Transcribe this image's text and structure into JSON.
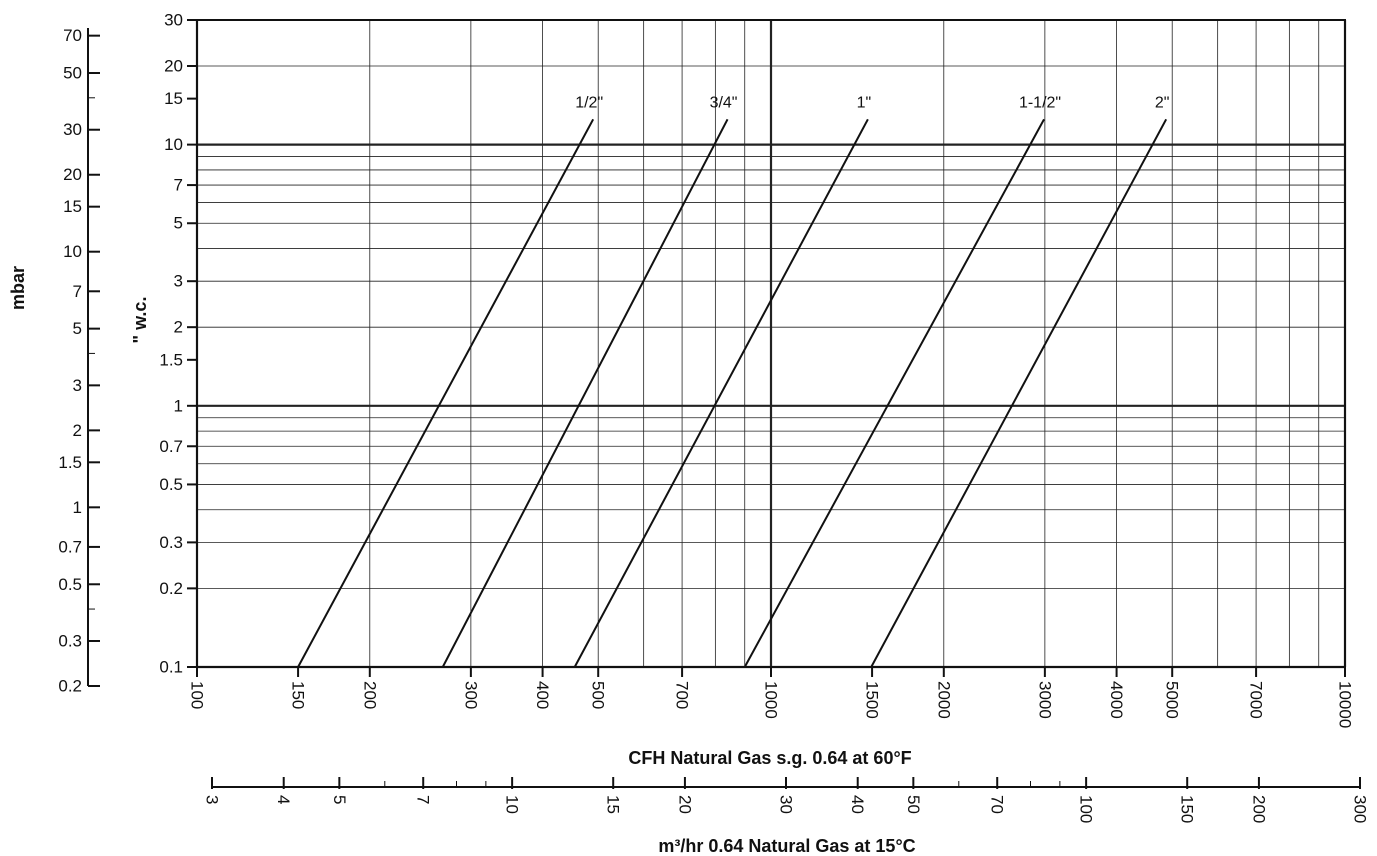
{
  "chart_data": {
    "type": "line",
    "x_scale": "log",
    "y_scale": "log",
    "grid": true,
    "xlabel": "CFH Natural Gas s.g. 0.64 at 60°F",
    "ylabel": "\" w.c.",
    "xlim": [
      100,
      10000
    ],
    "ylim": [
      0.1,
      30
    ],
    "x_ticks": [
      100,
      150,
      200,
      300,
      400,
      500,
      700,
      1000,
      1500,
      2000,
      3000,
      4000,
      5000,
      7000,
      10000
    ],
    "x_tick_labels": [
      "100",
      "150",
      "200",
      "300",
      "400",
      "500",
      "700",
      "1000",
      "1500",
      "2000",
      "3000",
      "4000",
      "5000",
      "7000",
      "10000"
    ],
    "x_grid": [
      100,
      200,
      300,
      400,
      500,
      600,
      700,
      800,
      900,
      1000,
      2000,
      3000,
      4000,
      5000,
      6000,
      7000,
      8000,
      9000,
      10000
    ],
    "y_ticks": [
      0.1,
      0.2,
      0.3,
      0.5,
      0.7,
      1,
      1.5,
      2,
      3,
      5,
      7,
      10,
      15,
      20,
      30
    ],
    "y_tick_labels": [
      "0.1",
      "0.2",
      "0.3",
      "0.5",
      "0.7",
      "1",
      "1.5",
      "2",
      "3",
      "5",
      "7",
      "10",
      "15",
      "20",
      "30"
    ],
    "y_grid": [
      0.1,
      0.2,
      0.3,
      0.4,
      0.5,
      0.6,
      0.7,
      0.8,
      0.9,
      1,
      2,
      3,
      4,
      5,
      6,
      7,
      8,
      9,
      10,
      20,
      30
    ],
    "series": [
      {
        "name": "1/2\"",
        "x": [
          150,
          490
        ],
        "y": [
          0.1,
          12.5
        ]
      },
      {
        "name": "3/4\"",
        "x": [
          268,
          840
        ],
        "y": [
          0.1,
          12.5
        ]
      },
      {
        "name": "1\"",
        "x": [
          455,
          1475
        ],
        "y": [
          0.1,
          12.5
        ]
      },
      {
        "name": "1-1/2\"",
        "x": [
          900,
          2990
        ],
        "y": [
          0.1,
          12.5
        ]
      },
      {
        "name": "2\"",
        "x": [
          1495,
          4880
        ],
        "y": [
          0.1,
          12.5
        ]
      }
    ],
    "secondary_y_axis": {
      "label": "mbar",
      "scale": "log",
      "range": [
        0.2,
        75
      ],
      "ticks": [
        0.2,
        0.3,
        0.5,
        0.7,
        1,
        1.5,
        2,
        3,
        5,
        7,
        10,
        15,
        20,
        30,
        50,
        70
      ],
      "tick_labels": [
        "0.2",
        "0.3",
        "0.5",
        "0.7",
        "1",
        "1.5",
        "2",
        "3",
        "5",
        "7",
        "10",
        "15",
        "20",
        "30",
        "50",
        "70"
      ],
      "minor_ticks": [
        0.4,
        4,
        40
      ]
    },
    "secondary_x_axis": {
      "label": "m³/hr 0.64 Natural Gas at 15°C",
      "scale": "log",
      "range": [
        3,
        300
      ],
      "ticks": [
        3,
        4,
        5,
        7,
        10,
        15,
        20,
        30,
        40,
        50,
        70,
        100,
        150,
        200,
        300
      ],
      "tick_labels": [
        "3",
        "4",
        "5",
        "7",
        "10",
        "15",
        "20",
        "30",
        "40",
        "50",
        "70",
        "100",
        "150",
        "200",
        "300"
      ],
      "minor_ticks": [
        6,
        8,
        9,
        60,
        80,
        90
      ]
    }
  }
}
